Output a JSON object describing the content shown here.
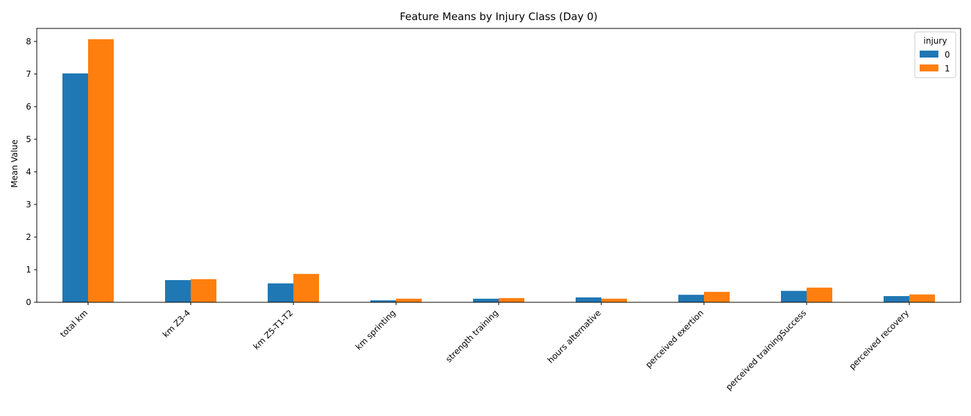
{
  "chart_data": {
    "type": "bar",
    "title": "Feature Means by Injury Class (Day 0)",
    "xlabel": "",
    "ylabel": "Mean Value",
    "ylim": [
      0,
      8.4
    ],
    "yticks": [
      0,
      1,
      2,
      3,
      4,
      5,
      6,
      7,
      8
    ],
    "grid": false,
    "legend": {
      "title": "injury",
      "placement": "top-right"
    },
    "categories": [
      "total km",
      "km Z3-4",
      "km Z5-T1-T2",
      "km sprinting",
      "strength training",
      "hours alternative",
      "perceived exertion",
      "perceived trainingSuccess",
      "perceived recovery"
    ],
    "series": [
      {
        "name": "0",
        "color": "#1f77b4",
        "values": [
          7.02,
          0.68,
          0.58,
          0.06,
          0.11,
          0.15,
          0.23,
          0.35,
          0.19
        ]
      },
      {
        "name": "1",
        "color": "#ff7f0e",
        "values": [
          8.07,
          0.71,
          0.87,
          0.11,
          0.13,
          0.11,
          0.32,
          0.45,
          0.24
        ]
      }
    ]
  }
}
